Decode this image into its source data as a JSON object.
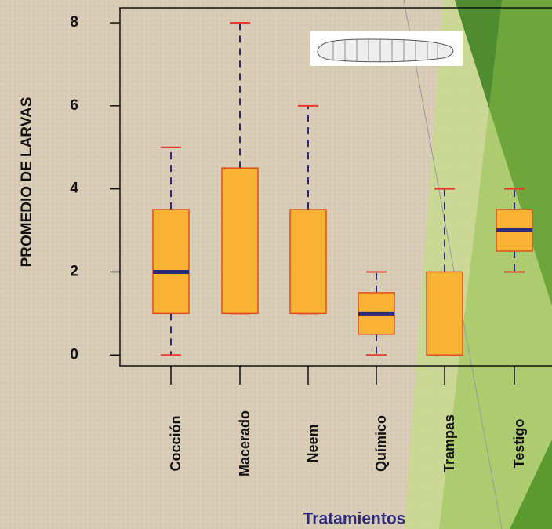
{
  "chart_data": {
    "type": "box",
    "y_label": "PROMEDIO DE LARVAS",
    "x_label": "Tratamientos",
    "categories": [
      "Cocción",
      "Macerado",
      "Neem",
      "Químico",
      "Trampas",
      "Testigo"
    ],
    "min": [
      0,
      1,
      1,
      0,
      0,
      2
    ],
    "q1": [
      1,
      1,
      1,
      0.5,
      0,
      2.5
    ],
    "median": [
      2,
      null,
      null,
      1,
      null,
      3
    ],
    "q3": [
      3.5,
      4.5,
      3.5,
      1.5,
      2,
      3.5
    ],
    "max": [
      5,
      8,
      6,
      2,
      4,
      4
    ],
    "color": "#f9b233",
    "ylim": [
      -0.26,
      8.36
    ],
    "yticks": [
      0,
      2,
      4,
      6,
      8
    ]
  }
}
